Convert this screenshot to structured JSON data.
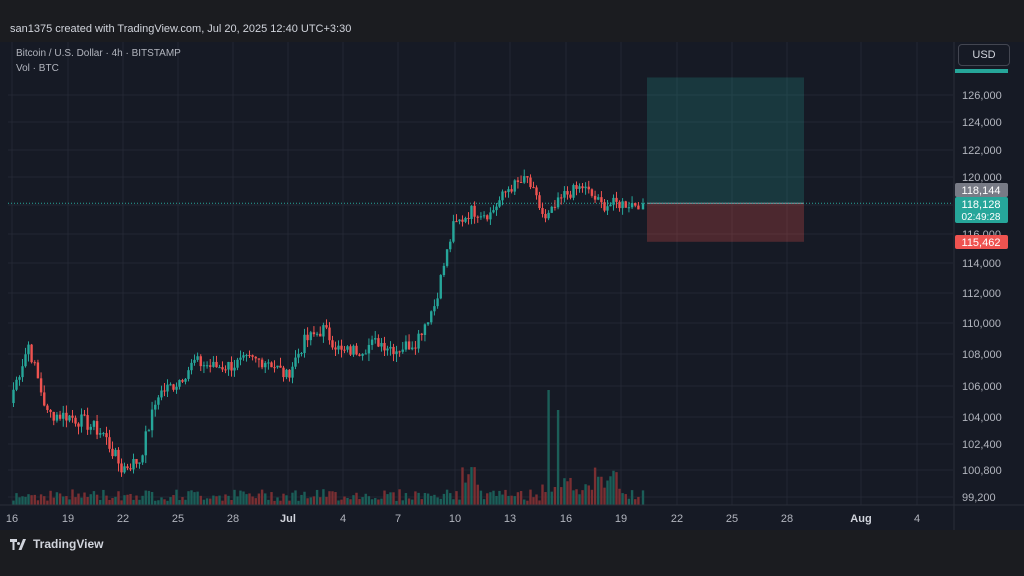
{
  "header": {
    "title": "san1375 created with TradingView.com, Jul 20, 2025 12:40 UTC+3:30"
  },
  "legend": {
    "symbol": "Bitcoin / U.S. Dollar · 4h · BITSTAMP",
    "volume": "Vol · BTC"
  },
  "currency_button": "USD",
  "footer": {
    "brand": "TradingView"
  },
  "colors": {
    "up": "#26a69a",
    "down": "#ef5350",
    "volume_up": "#1b5e58",
    "volume_down": "#7a2f32",
    "background": "#161a25",
    "grid": "#232733"
  },
  "chart_data": {
    "type": "candlestick",
    "x_ticks": [
      "16",
      "19",
      "22",
      "25",
      "28",
      "Jul",
      "4",
      "7",
      "10",
      "13",
      "16",
      "19",
      "22",
      "25",
      "28",
      "Aug",
      "4"
    ],
    "y_ticks": [
      "126,000",
      "124,000",
      "122,000",
      "120,000",
      "118,000",
      "116,000",
      "114,000",
      "112,000",
      "110,000",
      "108,000",
      "106,000",
      "104,000",
      "102,400",
      "100,800",
      "99,200"
    ],
    "ylim": [
      99000,
      128000
    ],
    "price_labels": [
      {
        "value": "118,144",
        "role": "previous-close",
        "color": "#787b86"
      },
      {
        "value": "118,128",
        "sub": "02:49:28",
        "role": "last-price",
        "color": "#26a69a"
      },
      {
        "value": "115,462",
        "role": "stop-level",
        "color": "#ef5350"
      }
    ],
    "position_tool": {
      "entry": 118128,
      "target": 127300,
      "stop": 115462
    },
    "close_path": [
      [
        "16",
        105200
      ],
      [
        "17",
        108600
      ],
      [
        "18",
        104200
      ],
      [
        "19",
        104100
      ],
      [
        "20",
        103700
      ],
      [
        "21",
        103000
      ],
      [
        "22",
        100900
      ],
      [
        "23",
        101400
      ],
      [
        "24",
        105500
      ],
      [
        "25",
        106200
      ],
      [
        "26",
        107500
      ],
      [
        "27",
        107200
      ],
      [
        "28",
        107300
      ],
      [
        "29",
        107600
      ],
      [
        "30",
        107600
      ],
      [
        "Jul",
        106600
      ],
      [
        "2",
        108800
      ],
      [
        "3",
        109600
      ],
      [
        "4",
        108100
      ],
      [
        "5",
        108300
      ],
      [
        "6",
        108800
      ],
      [
        "7",
        108300
      ],
      [
        "8",
        108800
      ],
      [
        "9",
        111200
      ],
      [
        "10",
        116500
      ],
      [
        "11",
        117600
      ],
      [
        "12",
        117400
      ],
      [
        "13",
        119200
      ],
      [
        "14",
        119800
      ],
      [
        "15",
        116900
      ],
      [
        "16",
        118700
      ],
      [
        "17",
        119300
      ],
      [
        "18",
        118000
      ],
      [
        "19",
        118100
      ],
      [
        "20",
        118128
      ]
    ],
    "volume_spikes": [
      [
        "14",
        "high"
      ],
      [
        "15",
        "high"
      ]
    ]
  }
}
